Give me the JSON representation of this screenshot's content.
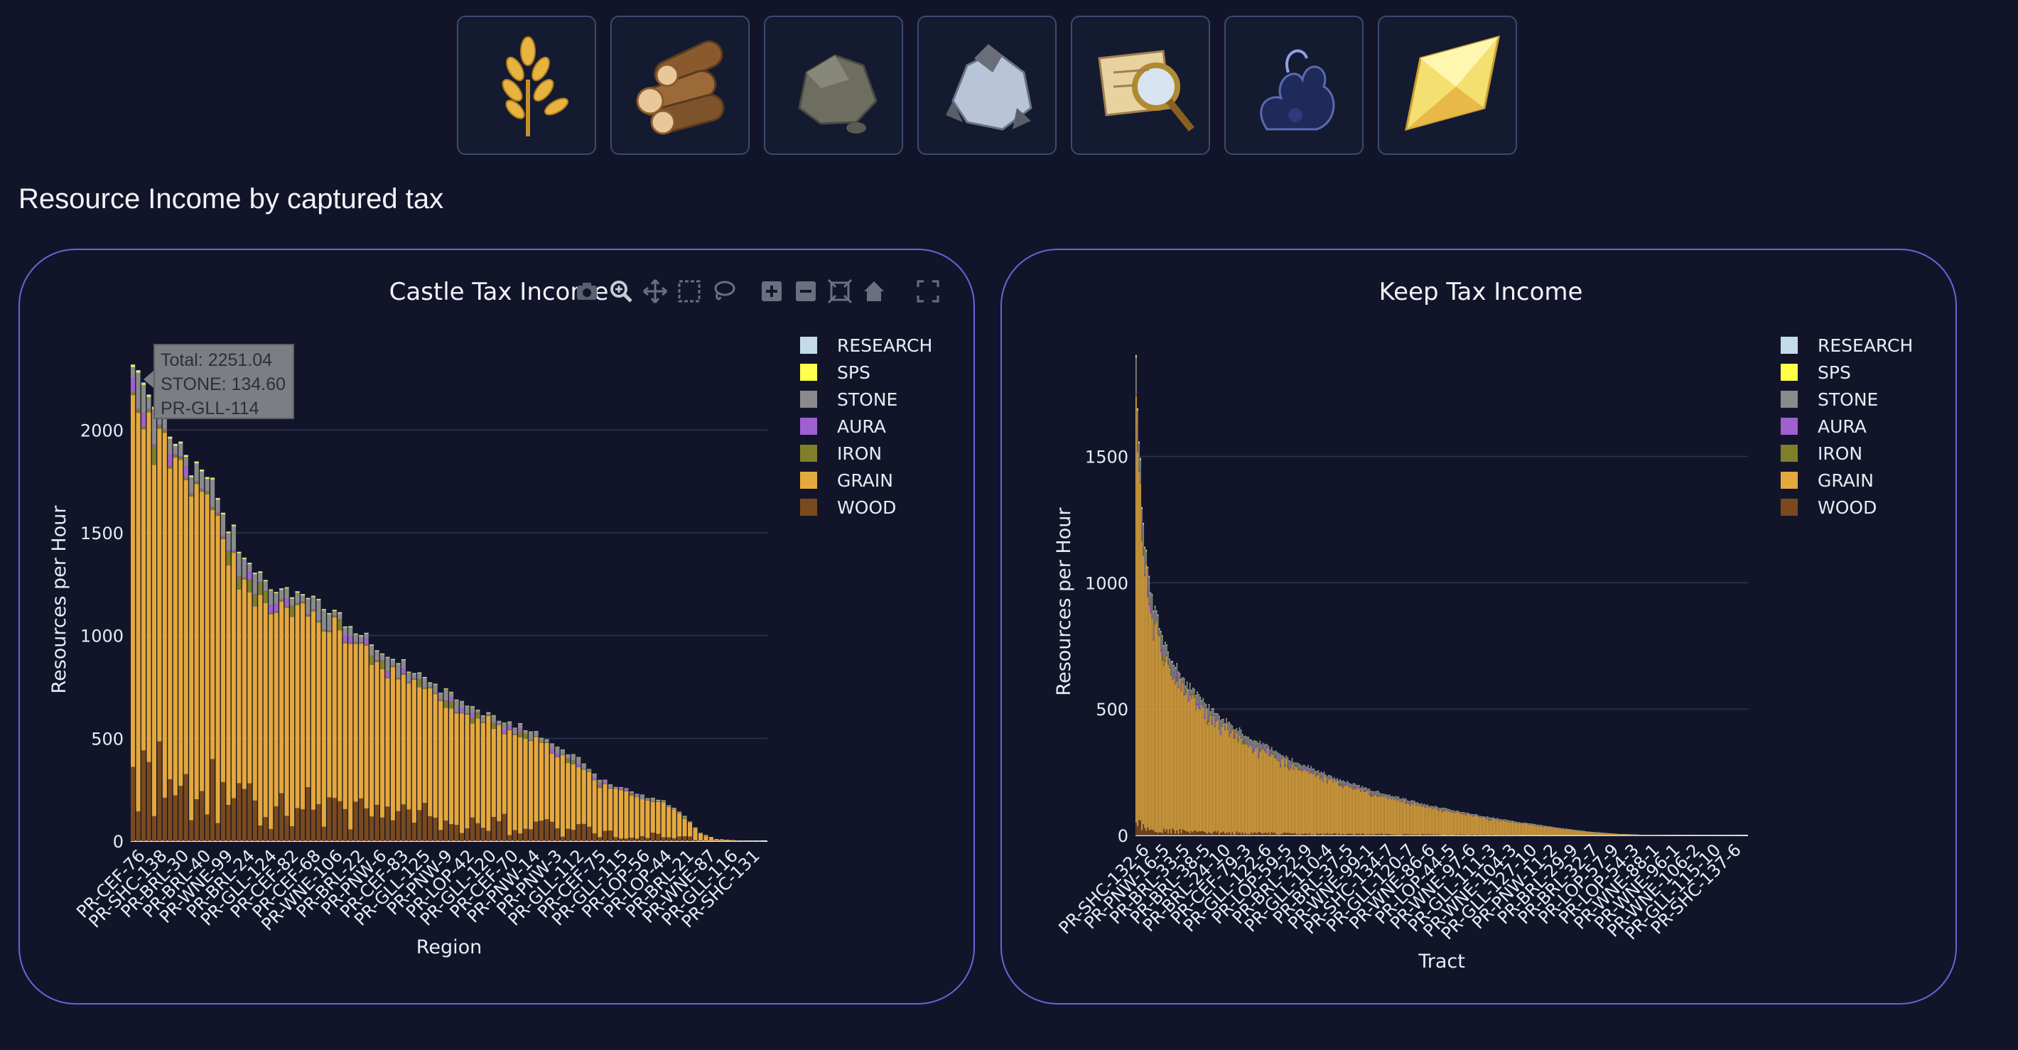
{
  "toolbar": {
    "icons": [
      {
        "name": "grain-icon"
      },
      {
        "name": "wood-icon"
      },
      {
        "name": "stone-icon"
      },
      {
        "name": "iron-icon"
      },
      {
        "name": "research-icon"
      },
      {
        "name": "aura-icon"
      },
      {
        "name": "sps-icon"
      }
    ]
  },
  "section_title": "Resource Income by captured tax",
  "colors": {
    "RESEARCH": "#c4dcea",
    "SPS": "#ffff4c",
    "STONE": "#8a8a8a",
    "AURA": "#a060d0",
    "IRON": "#7f7f2a",
    "GRAIN": "#e4a83c",
    "WOOD": "#7a4a1e",
    "background": "#12152a",
    "panel_border": "#7060d8"
  },
  "legend_order": [
    "RESEARCH",
    "SPS",
    "STONE",
    "AURA",
    "IRON",
    "GRAIN",
    "WOOD"
  ],
  "tooltip": {
    "total": "Total: 2251.04",
    "stone": "STONE: 134.60",
    "region": "PR-GLL-114"
  },
  "chart_data": [
    {
      "type": "bar",
      "stacked": true,
      "title": "Castle Tax Income",
      "xlabel": "Region",
      "ylabel": "Resources per Hour",
      "ylim": [
        0,
        2350
      ],
      "yticks": [
        0,
        500,
        1000,
        1500,
        2000
      ],
      "grid": true,
      "legend_position": "right",
      "series": [
        {
          "name": "RESEARCH"
        },
        {
          "name": "SPS"
        },
        {
          "name": "STONE"
        },
        {
          "name": "AURA"
        },
        {
          "name": "IRON"
        },
        {
          "name": "GRAIN"
        },
        {
          "name": "WOOD"
        }
      ],
      "bar_count": 120,
      "total_profile": [
        [
          0,
          2320
        ],
        [
          2,
          2260
        ],
        [
          6,
          2050
        ],
        [
          10,
          1850
        ],
        [
          15,
          1720
        ],
        [
          20,
          1440
        ],
        [
          26,
          1250
        ],
        [
          32,
          1200
        ],
        [
          38,
          1100
        ],
        [
          44,
          990
        ],
        [
          50,
          880
        ],
        [
          56,
          770
        ],
        [
          62,
          680
        ],
        [
          68,
          600
        ],
        [
          74,
          550
        ],
        [
          80,
          470
        ],
        [
          85,
          380
        ],
        [
          88,
          300
        ],
        [
          92,
          260
        ],
        [
          96,
          220
        ],
        [
          100,
          200
        ],
        [
          104,
          120
        ],
        [
          107,
          40
        ],
        [
          110,
          10
        ],
        [
          115,
          2
        ],
        [
          119,
          0
        ]
      ],
      "wood_share": 0.12,
      "stone_share": 0.05,
      "aura_share": 0.01,
      "iron_share": 0.015,
      "sps_share": 0.003,
      "research_share": 0.002,
      "tick_labels": [
        "PR-CEF-76",
        "PR-SHC-138",
        "PR-BRL-30",
        "PR-BRL-40",
        "PR-WNE-99",
        "PR-BRL-24",
        "PR-GLL-124",
        "PR-CEF-82",
        "PR-CEF-68",
        "PR-WNE-106",
        "PR-BRL-22",
        "PR-PNW-6",
        "PR-CEF-83",
        "PR-GLL-125",
        "PR-PNW-9",
        "PR-LOP-42",
        "PR-GLL-120",
        "PR-CEF-70",
        "PR-PNW-14",
        "PR-PNW-3",
        "PR-GLL-112",
        "PR-CEF-75",
        "PR-GLL-115",
        "PR-LOP-56",
        "PR-LOP-44",
        "PR-BRL-21",
        "PR-WNE-87",
        "PR-GLL-116",
        "PR-SHC-131"
      ]
    },
    {
      "type": "bar",
      "stacked": true,
      "title": "Keep Tax Income",
      "xlabel": "Tract",
      "ylabel": "Resources per Hour",
      "ylim": [
        0,
        1850
      ],
      "yticks": [
        0,
        500,
        1000,
        1500
      ],
      "grid": true,
      "legend_position": "right",
      "series": [
        {
          "name": "RESEARCH"
        },
        {
          "name": "SPS"
        },
        {
          "name": "STONE"
        },
        {
          "name": "AURA"
        },
        {
          "name": "IRON"
        },
        {
          "name": "GRAIN"
        },
        {
          "name": "WOOD"
        }
      ],
      "bar_count": 420,
      "total_profile": [
        [
          0,
          1850
        ],
        [
          2,
          1580
        ],
        [
          5,
          1220
        ],
        [
          10,
          950
        ],
        [
          20,
          750
        ],
        [
          35,
          600
        ],
        [
          55,
          480
        ],
        [
          80,
          380
        ],
        [
          110,
          290
        ],
        [
          140,
          220
        ],
        [
          170,
          165
        ],
        [
          200,
          120
        ],
        [
          230,
          85
        ],
        [
          260,
          55
        ],
        [
          290,
          30
        ],
        [
          310,
          15
        ],
        [
          330,
          6
        ],
        [
          350,
          2
        ],
        [
          380,
          1
        ],
        [
          419,
          0
        ]
      ],
      "wood_share": 0.02,
      "stone_share": 0.06,
      "aura_share": 0.01,
      "iron_share": 0.01,
      "sps_share": 0.003,
      "research_share": 0.003,
      "tick_labels": [
        "PR-SHC-132-6",
        "PR-PNW-16-5",
        "PR-BRL-33-5",
        "PR-BRL-38-5",
        "PR-BRL-24-10",
        "PR-CEF-79-3",
        "PR-GLL-122-6",
        "PR-LOP-59-5",
        "PR-BRL-22-9",
        "PR-GLL-110-4",
        "PR-BRL-37-5",
        "PR-WNE-99-1",
        "PR-SHC-134-7",
        "PR-GLL-120-7",
        "PR-WNE-86-6",
        "PR-LOP-44-5",
        "PR-WNE-97-6",
        "PR-GLL-111-3",
        "PR-WNE-104-3",
        "PR-GLL-127-10",
        "PR-PNW-11-2",
        "PR-BRL-29-9",
        "PR-BRL-32-7",
        "PR-LOP-57-9",
        "PR-LOP-54-3",
        "PR-WNE-88-1",
        "PR-WNE-96-1",
        "PR-WNE-106-2",
        "PR-GLL-115-10",
        "PR-SHC-137-6"
      ]
    }
  ]
}
